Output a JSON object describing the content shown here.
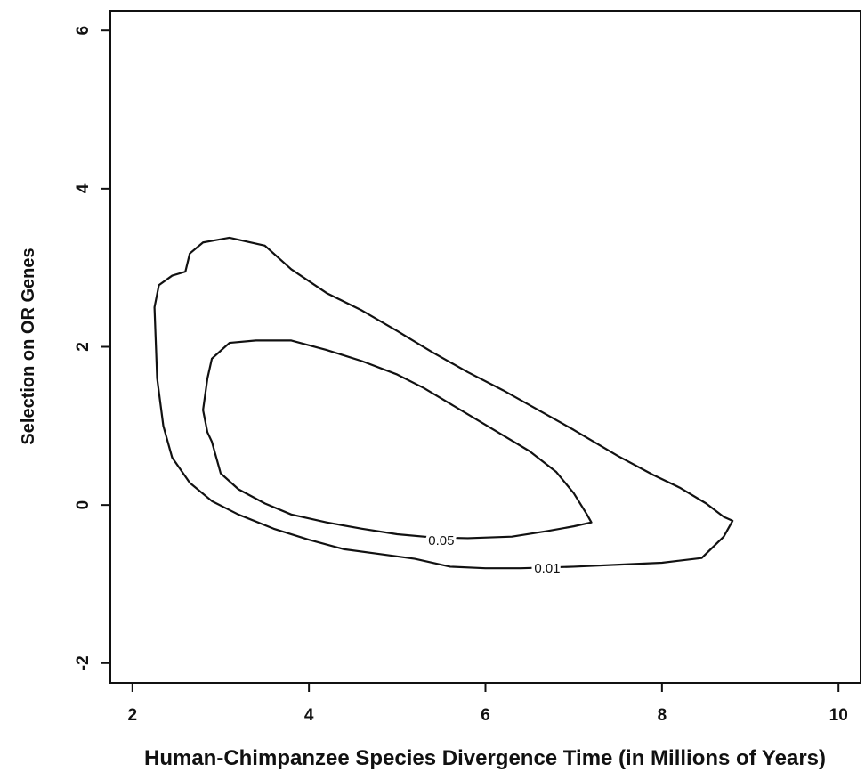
{
  "chart_data": {
    "type": "contour",
    "xlabel": "Human-Chimpanzee Species Divergence Time (in Millions of Years)",
    "ylabel": "Selection on OR Genes",
    "xlim": [
      1.75,
      10.25
    ],
    "ylim": [
      -2.25,
      6.25
    ],
    "xticks": [
      2,
      4,
      6,
      8,
      10
    ],
    "yticks": [
      -2,
      0,
      2,
      4,
      6
    ],
    "xtick_labels": [
      "2",
      "4",
      "6",
      "8",
      "10"
    ],
    "ytick_labels": [
      "-2",
      "0",
      "2",
      "4",
      "6"
    ],
    "grid": false,
    "line_color": "#111111",
    "contours": [
      {
        "label": "0.05",
        "label_at": [
          5.5,
          -0.45
        ],
        "points": [
          [
            7.2,
            -0.22
          ],
          [
            7.15,
            -0.12
          ],
          [
            7.0,
            0.15
          ],
          [
            6.8,
            0.42
          ],
          [
            6.5,
            0.68
          ],
          [
            6.2,
            0.88
          ],
          [
            5.9,
            1.08
          ],
          [
            5.6,
            1.28
          ],
          [
            5.3,
            1.48
          ],
          [
            5.0,
            1.65
          ],
          [
            4.6,
            1.82
          ],
          [
            4.2,
            1.96
          ],
          [
            3.8,
            2.08
          ],
          [
            3.4,
            2.08
          ],
          [
            3.1,
            2.05
          ],
          [
            2.9,
            1.85
          ],
          [
            2.85,
            1.6
          ],
          [
            2.8,
            1.2
          ],
          [
            2.85,
            0.92
          ],
          [
            2.9,
            0.8
          ],
          [
            2.95,
            0.6
          ],
          [
            3.0,
            0.4
          ],
          [
            3.2,
            0.2
          ],
          [
            3.5,
            0.02
          ],
          [
            3.8,
            -0.12
          ],
          [
            4.2,
            -0.22
          ],
          [
            4.6,
            -0.3
          ],
          [
            5.0,
            -0.37
          ],
          [
            5.4,
            -0.41
          ],
          [
            5.8,
            -0.42
          ],
          [
            6.3,
            -0.4
          ],
          [
            6.7,
            -0.33
          ],
          [
            7.0,
            -0.27
          ],
          [
            7.2,
            -0.22
          ]
        ]
      },
      {
        "label": "0.01",
        "label_at": [
          6.7,
          -0.8
        ],
        "points": [
          [
            8.8,
            -0.2
          ],
          [
            8.7,
            -0.15
          ],
          [
            8.5,
            0.02
          ],
          [
            8.2,
            0.22
          ],
          [
            7.9,
            0.38
          ],
          [
            7.5,
            0.62
          ],
          [
            7.0,
            0.95
          ],
          [
            6.6,
            1.2
          ],
          [
            6.2,
            1.45
          ],
          [
            5.8,
            1.68
          ],
          [
            5.4,
            1.93
          ],
          [
            5.0,
            2.2
          ],
          [
            4.6,
            2.46
          ],
          [
            4.2,
            2.68
          ],
          [
            3.8,
            2.98
          ],
          [
            3.5,
            3.28
          ],
          [
            3.1,
            3.38
          ],
          [
            2.8,
            3.32
          ],
          [
            2.65,
            3.18
          ],
          [
            2.6,
            2.95
          ],
          [
            2.45,
            2.9
          ],
          [
            2.3,
            2.78
          ],
          [
            2.25,
            2.5
          ],
          [
            2.28,
            1.6
          ],
          [
            2.35,
            1.0
          ],
          [
            2.45,
            0.6
          ],
          [
            2.65,
            0.28
          ],
          [
            2.9,
            0.05
          ],
          [
            3.2,
            -0.12
          ],
          [
            3.6,
            -0.3
          ],
          [
            4.0,
            -0.44
          ],
          [
            4.4,
            -0.56
          ],
          [
            4.8,
            -0.62
          ],
          [
            5.2,
            -0.68
          ],
          [
            5.6,
            -0.78
          ],
          [
            6.0,
            -0.8
          ],
          [
            6.4,
            -0.8
          ],
          [
            7.0,
            -0.78
          ],
          [
            7.6,
            -0.75
          ],
          [
            8.0,
            -0.73
          ],
          [
            8.45,
            -0.67
          ],
          [
            8.7,
            -0.4
          ],
          [
            8.8,
            -0.2
          ]
        ]
      }
    ]
  }
}
